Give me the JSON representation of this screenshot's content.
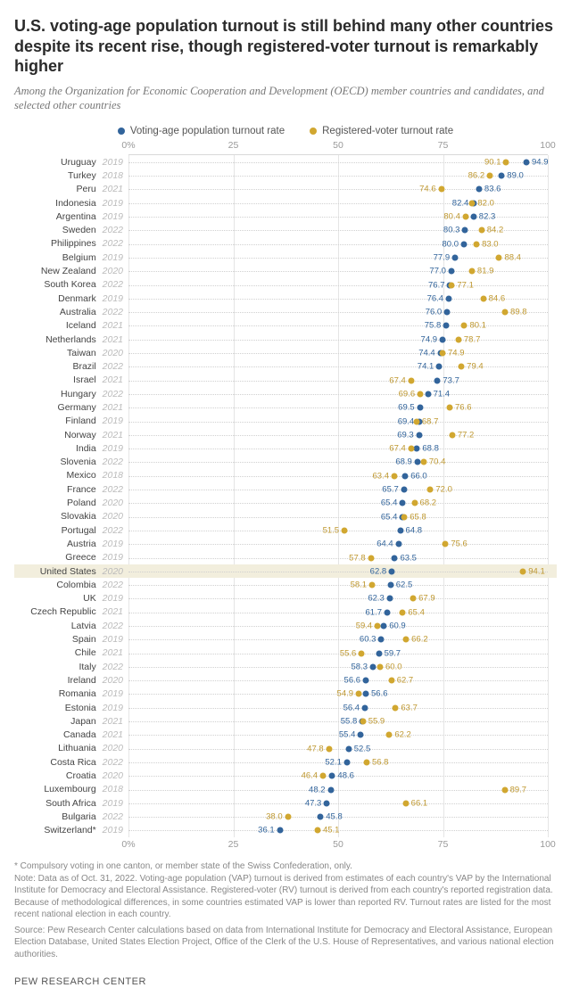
{
  "title": "U.S. voting-age population turnout is still behind many other countries despite its recent rise, though registered-voter turnout is remarkably higher",
  "subtitle": "Among the Organization for Economic Cooperation and Development (OECD) member countries and candidates, and selected other countries",
  "legend": {
    "vap": "Voting-age population turnout rate",
    "rv": "Registered-voter turnout rate"
  },
  "colors": {
    "vap": "#32649b",
    "rv": "#d1a730",
    "vap_text": "#32649b",
    "rv_text": "#bf9830",
    "highlight_bg": "#f2eedd",
    "grid": "#e5e5e5"
  },
  "axis": {
    "min": 0,
    "max": 100,
    "ticks": [
      0,
      25,
      50,
      75,
      100
    ],
    "tick_labels": [
      "0%",
      "25",
      "50",
      "75",
      "100"
    ]
  },
  "rows": [
    {
      "country": "Uruguay",
      "year": "2019",
      "vap": 94.9,
      "rv": 90.1
    },
    {
      "country": "Turkey",
      "year": "2018",
      "vap": 89.0,
      "rv": 86.2
    },
    {
      "country": "Peru",
      "year": "2021",
      "vap": 83.6,
      "rv": 74.6
    },
    {
      "country": "Indonesia",
      "year": "2019",
      "vap": 82.4,
      "rv": 82.0
    },
    {
      "country": "Argentina",
      "year": "2019",
      "vap": 82.3,
      "rv": 80.4
    },
    {
      "country": "Sweden",
      "year": "2022",
      "vap": 80.3,
      "rv": 84.2
    },
    {
      "country": "Philippines",
      "year": "2022",
      "vap": 80.0,
      "rv": 83.0
    },
    {
      "country": "Belgium",
      "year": "2019",
      "vap": 77.9,
      "rv": 88.4
    },
    {
      "country": "New Zealand",
      "year": "2020",
      "vap": 77.0,
      "rv": 81.9
    },
    {
      "country": "South Korea",
      "year": "2022",
      "vap": 76.7,
      "rv": 77.1
    },
    {
      "country": "Denmark",
      "year": "2019",
      "vap": 76.4,
      "rv": 84.6
    },
    {
      "country": "Australia",
      "year": "2022",
      "vap": 76.0,
      "rv": 89.8
    },
    {
      "country": "Iceland",
      "year": "2021",
      "vap": 75.8,
      "rv": 80.1
    },
    {
      "country": "Netherlands",
      "year": "2021",
      "vap": 74.9,
      "rv": 78.7
    },
    {
      "country": "Taiwan",
      "year": "2020",
      "vap": 74.4,
      "rv": 74.9
    },
    {
      "country": "Brazil",
      "year": "2022",
      "vap": 74.1,
      "rv": 79.4
    },
    {
      "country": "Israel",
      "year": "2021",
      "vap": 73.7,
      "rv": 67.4
    },
    {
      "country": "Hungary",
      "year": "2022",
      "vap": 71.4,
      "rv": 69.6
    },
    {
      "country": "Germany",
      "year": "2021",
      "vap": 69.5,
      "rv": 76.6
    },
    {
      "country": "Finland",
      "year": "2019",
      "vap": 69.4,
      "rv": 68.7
    },
    {
      "country": "Norway",
      "year": "2021",
      "vap": 69.3,
      "rv": 77.2
    },
    {
      "country": "India",
      "year": "2019",
      "vap": 68.8,
      "rv": 67.4
    },
    {
      "country": "Slovenia",
      "year": "2022",
      "vap": 68.9,
      "rv": 70.4
    },
    {
      "country": "Mexico",
      "year": "2018",
      "vap": 66.0,
      "rv": 63.4
    },
    {
      "country": "France",
      "year": "2022",
      "vap": 65.7,
      "rv": 72.0
    },
    {
      "country": "Poland",
      "year": "2020",
      "vap": 65.4,
      "rv": 68.2
    },
    {
      "country": "Slovakia",
      "year": "2020",
      "vap": 65.4,
      "rv": 65.8
    },
    {
      "country": "Portugal",
      "year": "2022",
      "vap": 64.8,
      "rv": 51.5
    },
    {
      "country": "Austria",
      "year": "2019",
      "vap": 64.4,
      "rv": 75.6
    },
    {
      "country": "Greece",
      "year": "2019",
      "vap": 63.5,
      "rv": 57.8
    },
    {
      "country": "United States",
      "year": "2020",
      "vap": 62.8,
      "rv": 94.1,
      "highlight": true
    },
    {
      "country": "Colombia",
      "year": "2022",
      "vap": 62.5,
      "rv": 58.1
    },
    {
      "country": "UK",
      "year": "2019",
      "vap": 62.3,
      "rv": 67.9
    },
    {
      "country": "Czech Republic",
      "year": "2021",
      "vap": 61.7,
      "rv": 65.4
    },
    {
      "country": "Latvia",
      "year": "2022",
      "vap": 60.9,
      "rv": 59.4
    },
    {
      "country": "Spain",
      "year": "2019",
      "vap": 60.3,
      "rv": 66.2
    },
    {
      "country": "Chile",
      "year": "2021",
      "vap": 59.7,
      "rv": 55.6
    },
    {
      "country": "Italy",
      "year": "2022",
      "vap": 58.3,
      "rv": 60.0
    },
    {
      "country": "Ireland",
      "year": "2020",
      "vap": 56.6,
      "rv": 62.7
    },
    {
      "country": "Romania",
      "year": "2019",
      "vap": 56.6,
      "rv": 54.9
    },
    {
      "country": "Estonia",
      "year": "2019",
      "vap": 56.4,
      "rv": 63.7
    },
    {
      "country": "Japan",
      "year": "2021",
      "vap": 55.8,
      "rv": 55.9
    },
    {
      "country": "Canada",
      "year": "2021",
      "vap": 55.4,
      "rv": 62.2
    },
    {
      "country": "Lithuania",
      "year": "2020",
      "vap": 52.5,
      "rv": 47.8
    },
    {
      "country": "Costa Rica",
      "year": "2022",
      "vap": 52.1,
      "rv": 56.8
    },
    {
      "country": "Croatia",
      "year": "2020",
      "vap": 48.6,
      "rv": 46.4
    },
    {
      "country": "Luxembourg",
      "year": "2018",
      "vap": 48.2,
      "rv": 89.7
    },
    {
      "country": "South Africa",
      "year": "2019",
      "vap": 47.3,
      "rv": 66.1
    },
    {
      "country": "Bulgaria",
      "year": "2022",
      "vap": 45.8,
      "rv": 38.0
    },
    {
      "country": "Switzerland*",
      "year": "2019",
      "vap": 36.1,
      "rv": 45.1
    }
  ],
  "note": "* Compulsory voting in one canton, or member state of the Swiss Confederation, only.\nNote: Data as of Oct. 31, 2022. Voting-age population (VAP) turnout is derived from estimates of each country's VAP by the International Institute for Democracy and Electoral Assistance. Registered-voter (RV) turnout is derived from each country's reported registration data. Because of methodological differences, in some countries estimated VAP is lower than reported RV. Turnout rates are listed for the most recent national election in each country.",
  "source": "Source: Pew Research Center calculations based on data from International Institute for Democracy and Electoral Assistance, European Election Database, United States Election Project, Office of the Clerk of the U.S. House of Representatives, and various national election authorities.",
  "brand": "PEW RESEARCH CENTER"
}
